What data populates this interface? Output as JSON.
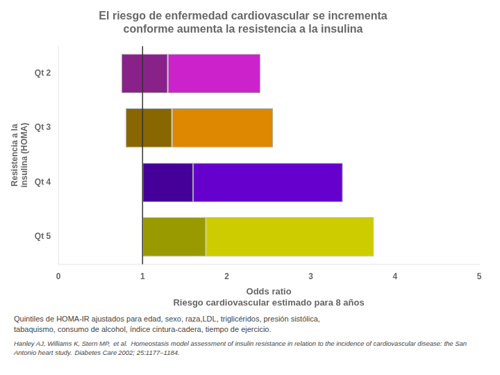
{
  "chart_data": {
    "type": "bar",
    "orientation": "horizontal",
    "title": [
      "El riesgo de enfermedad cardiovascular se incrementa",
      "conforme aumenta la resistencia a la insulina"
    ],
    "categories": [
      "Qt 2",
      "Qt 3",
      "Qt 4",
      "Qt 5"
    ],
    "series": [
      {
        "colors": [
          "#882288",
          "#886600",
          "#440099",
          "#999900"
        ],
        "values": [
          [
            0.75,
            1.3
          ],
          [
            0.8,
            1.35
          ],
          [
            1.0,
            1.6
          ],
          [
            1.0,
            1.75
          ]
        ]
      },
      {
        "colors": [
          "#cc22cc",
          "#dd8800",
          "#6600cc",
          "#cccc00"
        ],
        "values": [
          [
            1.3,
            2.4
          ],
          [
            1.35,
            2.55
          ],
          [
            1.6,
            3.38
          ],
          [
            1.75,
            3.75
          ]
        ]
      }
    ],
    "xlabel": [
      "Odds ratio",
      "Riesgo cardiovascular estimado para 8 años"
    ],
    "ylabel": "Resistencia a la\ninsulina (HOMA)",
    "xlim": [
      0,
      5
    ],
    "xticks": [
      0,
      1,
      2,
      3,
      4,
      5
    ],
    "vline": 1.0,
    "grid": false,
    "annotations": [
      "Quintiles de  HOMA-IR ajustados para edad, sexo, raza,LDL, triglicéridos, presión sistólica,",
      "tabaquismo, consumo de alcohol, índice cintura-cadera, tiempo de ejercicio.",
      "Hanley AJ, Williams K, Stern MP,  et al.  Homeostasis model assessment of insulin resistance in relation to the incidence of cardiovascular disease: the San",
      "Antonio heart study.  Diabetes Care 2002; 25:1177–1184."
    ]
  }
}
